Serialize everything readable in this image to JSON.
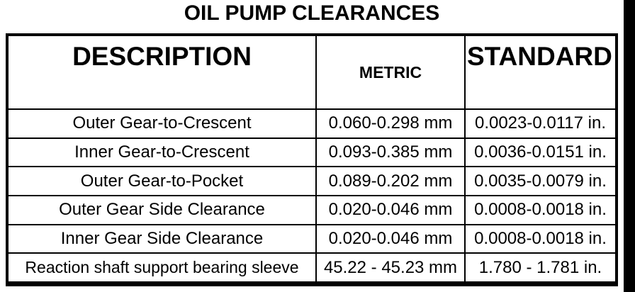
{
  "title": "OIL PUMP CLEARANCES",
  "table": {
    "headers": {
      "description": "DESCRIPTION",
      "metric": "METRIC",
      "standard": "STANDARD"
    },
    "rows": [
      {
        "description": "Outer Gear-to-Crescent",
        "metric": "0.060-0.298 mm",
        "standard": "0.0023-0.0117 in."
      },
      {
        "description": "Inner Gear-to-Crescent",
        "metric": "0.093-0.385 mm",
        "standard": "0.0036-0.0151 in."
      },
      {
        "description": "Outer Gear-to-Pocket",
        "metric": "0.089-0.202 mm",
        "standard": "0.0035-0.0079 in."
      },
      {
        "description": "Outer Gear Side Clearance",
        "metric": "0.020-0.046 mm",
        "standard": "0.0008-0.0018 in."
      },
      {
        "description": "Inner Gear Side Clearance",
        "metric": "0.020-0.046 mm",
        "standard": "0.0008-0.0018 in."
      },
      {
        "description": "Reaction shaft support bearing sleeve",
        "metric": "45.22 - 45.23 mm",
        "standard": "1.780 - 1.781 in."
      }
    ]
  },
  "colors": {
    "border": "#000000",
    "background": "#ffffff",
    "text": "#000000"
  }
}
